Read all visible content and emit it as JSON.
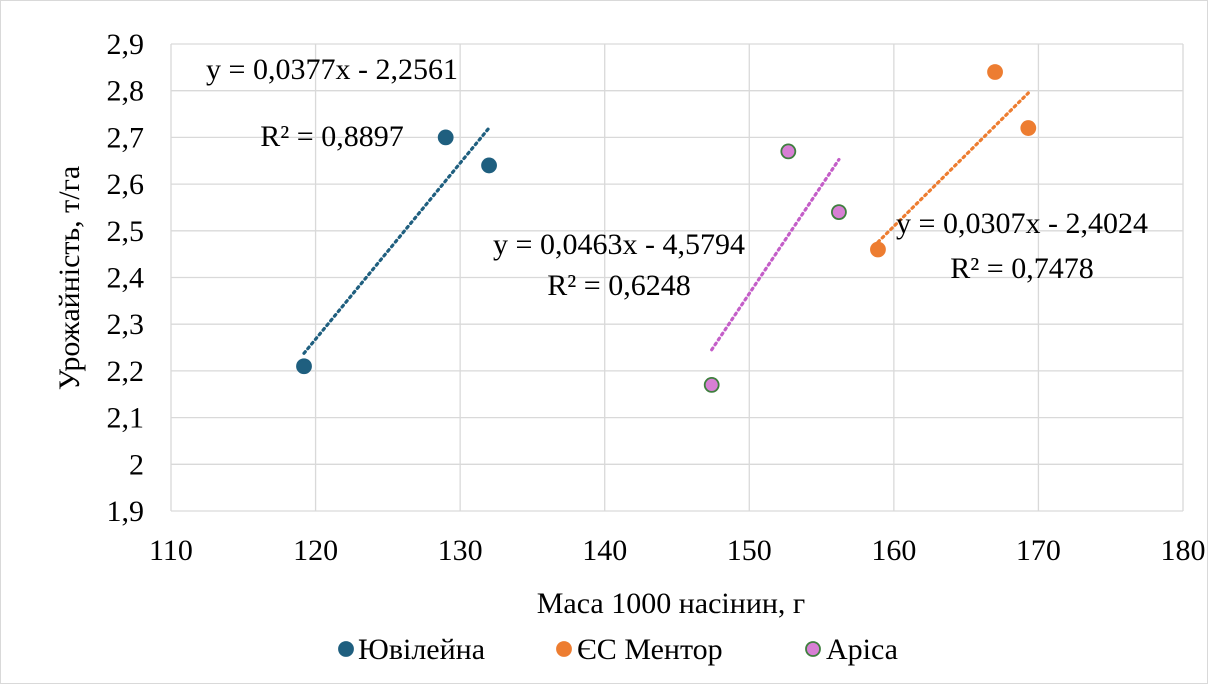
{
  "chart_data": {
    "type": "scatter",
    "title": "",
    "xlabel": "Маса 1000 насінин, г",
    "ylabel": "Урожайність, т/га",
    "xlim": [
      110,
      180
    ],
    "ylim": [
      1.9,
      2.9
    ],
    "x_ticks": [
      110,
      120,
      130,
      140,
      150,
      160,
      170,
      180
    ],
    "y_ticks": [
      1.9,
      2.0,
      2.1,
      2.2,
      2.3,
      2.4,
      2.5,
      2.6,
      2.7,
      2.8,
      2.9
    ],
    "x_tick_labels": [
      "110",
      "120",
      "130",
      "140",
      "150",
      "160",
      "170",
      "180"
    ],
    "y_tick_labels": [
      "1,9",
      "2",
      "2,1",
      "2,2",
      "2,3",
      "2,4",
      "2,5",
      "2,6",
      "2,7",
      "2,8",
      "2,9"
    ],
    "grid": true,
    "legend_position": "bottom",
    "series": [
      {
        "name": "Ювілейна",
        "color": "#1f5f7f",
        "marker_edge": "#1f5f7f",
        "points": [
          [
            119.2,
            2.21
          ],
          [
            129.0,
            2.7
          ],
          [
            132.0,
            2.64
          ]
        ],
        "trendline": {
          "slope": 0.0377,
          "intercept": -2.2561,
          "x_range": [
            119.2,
            132.0
          ],
          "color": "#1f5f7f"
        },
        "equation_label": "y = 0,0377x - 2,2561",
        "r2_label": "R² = 0,8897"
      },
      {
        "name": "ЄС Ментор",
        "color": "#ed7d31",
        "marker_edge": "#ed7d31",
        "points": [
          [
            158.9,
            2.46
          ],
          [
            167.0,
            2.84
          ],
          [
            169.3,
            2.72
          ]
        ],
        "trendline": {
          "slope": 0.0307,
          "intercept": -2.4024,
          "x_range": [
            158.9,
            169.3
          ],
          "color": "#ed7d31"
        },
        "equation_label": "y = 0,0307x - 2,4024",
        "r2_label": "R² = 0,7478"
      },
      {
        "name": "Аріса",
        "color": "#d77fd4",
        "marker_edge": "#3f7f3f",
        "points": [
          [
            147.4,
            2.17
          ],
          [
            152.7,
            2.67
          ],
          [
            156.2,
            2.54
          ]
        ],
        "trendline": {
          "slope": 0.0463,
          "intercept": -4.5794,
          "x_range": [
            147.4,
            156.2
          ],
          "color": "#c45ec8"
        },
        "equation_label": "y = 0,0463x - 4,5794",
        "r2_label": "R² = 0,6248"
      }
    ]
  }
}
